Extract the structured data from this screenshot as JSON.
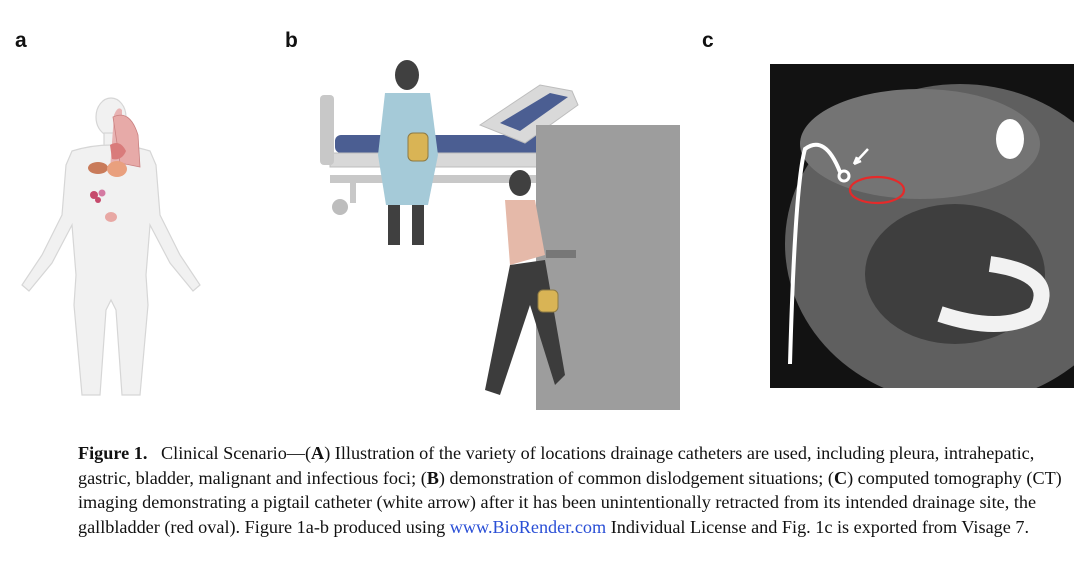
{
  "panels": {
    "a": "a",
    "b": "b",
    "c": "c"
  },
  "caption": {
    "figure_label": "Figure 1.",
    "seg1": "Clinical Scenario—(",
    "A": "A",
    "seg2": ") Illustration of the variety of locations drainage catheters are used, including pleura, intrahepatic, gastric, bladder, malignant and infectious foci; (",
    "B": "B",
    "seg3": ") demonstration of common dislodgement situations; (",
    "C": "C",
    "seg4": ") computed tomography (CT) imaging demonstrating a pigtail catheter (white arrow) after it has been unintentionally retracted from its intended drainage site, the gallbladder (red oval). Figure 1a-b produced using ",
    "link": "www.BioRender.com",
    "seg5": " Individual License and Fig. 1c is exported from Visage 7."
  }
}
